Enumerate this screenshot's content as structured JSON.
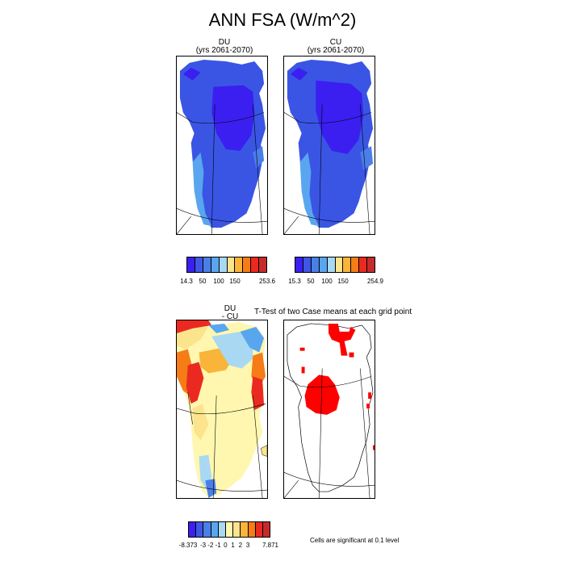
{
  "title": "ANN FSA (W/m^2)",
  "panels": {
    "du": {
      "line1": "DU",
      "line2": "(yrs 2061-2070)"
    },
    "cu": {
      "line1": "CU",
      "line2": "(yrs 2061-2070)"
    },
    "diff": {
      "line1": "DU",
      "line2": "- CU"
    },
    "ttest": {
      "title": "T-Test of two Case means at each grid point"
    }
  },
  "colorbars": {
    "du": {
      "labels": [
        "14.3",
        "50",
        "100",
        "150",
        "253.6"
      ],
      "colors": [
        "#3a1ff0",
        "#3f56e6",
        "#4a7fe8",
        "#59a6ee",
        "#a9d8f2",
        "#fbe48c",
        "#f9b43a",
        "#f57c16",
        "#ea2a20",
        "#c62b2b"
      ]
    },
    "cu": {
      "labels": [
        "15.3",
        "50",
        "100",
        "150",
        "254.9"
      ],
      "colors": [
        "#3a1ff0",
        "#3f56e6",
        "#4a7fe8",
        "#59a6ee",
        "#a9d8f2",
        "#fbe48c",
        "#f9b43a",
        "#f57c16",
        "#ea2a20",
        "#c62b2b"
      ]
    },
    "diff": {
      "labels": [
        "-8.373",
        "-3",
        "-2",
        "-1",
        "0",
        "1",
        "2",
        "3",
        "7.871"
      ],
      "colors": [
        "#3a1ff0",
        "#3f56e6",
        "#4a7fe8",
        "#59a6ee",
        "#a9d8f2",
        "#fff7b0",
        "#fbe48c",
        "#f9b43a",
        "#f57c16",
        "#ea2a20",
        "#c62b2b"
      ]
    }
  },
  "significance_note": "Cells are significant at 0.1 level"
}
